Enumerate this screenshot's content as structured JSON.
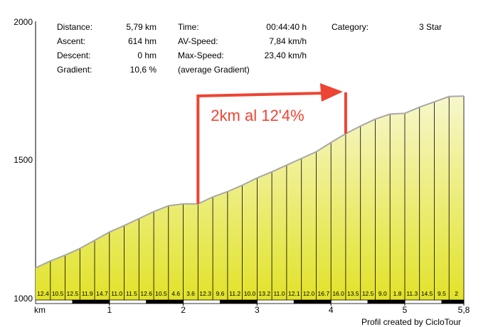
{
  "chart_data": {
    "type": "area",
    "x_unit_label": "km",
    "x_ticks": [
      "1",
      "2",
      "3",
      "4",
      "5",
      "5,8"
    ],
    "y_ticks": [
      "2000",
      "1500",
      "1000"
    ],
    "ylim": [
      1000,
      2000
    ],
    "xlim": [
      0,
      5.8
    ],
    "grid": false,
    "stats": [
      {
        "label": "Distance:",
        "value": "5,79 km"
      },
      {
        "label": "Ascent:",
        "value": "614 hm"
      },
      {
        "label": "Descent:",
        "value": "0 hm"
      },
      {
        "label": "Gradient:",
        "value": "10,6 %"
      },
      {
        "label": "Time:",
        "value": "00:44:40 h"
      },
      {
        "label": "AV-Speed:",
        "value": "7,84 km/h"
      },
      {
        "label": "Max-Speed:",
        "value": "23,40 km/h"
      },
      {
        "label": "(average Gradient)",
        "value": ""
      },
      {
        "label": "Category:",
        "value": "3 Star"
      }
    ],
    "profile": {
      "x": [
        0,
        0.2,
        0.4,
        0.6,
        0.8,
        1.0,
        1.2,
        1.4,
        1.6,
        1.8,
        2.0,
        2.2,
        2.4,
        2.6,
        2.8,
        3.0,
        3.2,
        3.4,
        3.6,
        3.8,
        4.0,
        4.2,
        4.4,
        4.6,
        4.8,
        5.0,
        5.2,
        5.4,
        5.6,
        5.8
      ],
      "elevation": [
        1115,
        1140,
        1161,
        1185,
        1214,
        1244,
        1267,
        1292,
        1317,
        1338,
        1345,
        1345,
        1370,
        1389,
        1412,
        1438,
        1460,
        1484,
        1508,
        1532,
        1565,
        1597,
        1624,
        1649,
        1667,
        1670,
        1692,
        1711,
        1730,
        1732
      ]
    },
    "segment_gradients": [
      "12.4",
      "10.5",
      "12.5",
      "11.9",
      "14.7",
      "11.0",
      "11.5",
      "12.6",
      "10.5",
      "4.6",
      "3.6",
      "12.3",
      "9.6",
      "11.2",
      "10.0",
      "13.2",
      "11.0",
      "12.1",
      "12.0",
      "16.7",
      "16.0",
      "13.5",
      "12.5",
      "9.0",
      "1.8",
      "11.3",
      "14.5",
      "9.5",
      "2"
    ],
    "annotation": {
      "text": "2km al 12'4%",
      "x_start": 2.2,
      "x_end": 4.2,
      "color": "#ee4433"
    },
    "footer": "Profil created by CicloTour",
    "colors": {
      "fill_top": "#f7f7cc",
      "fill_bottom": "#e2e22a",
      "outline": "#a8a8a8",
      "annotation": "#ee4433"
    }
  }
}
